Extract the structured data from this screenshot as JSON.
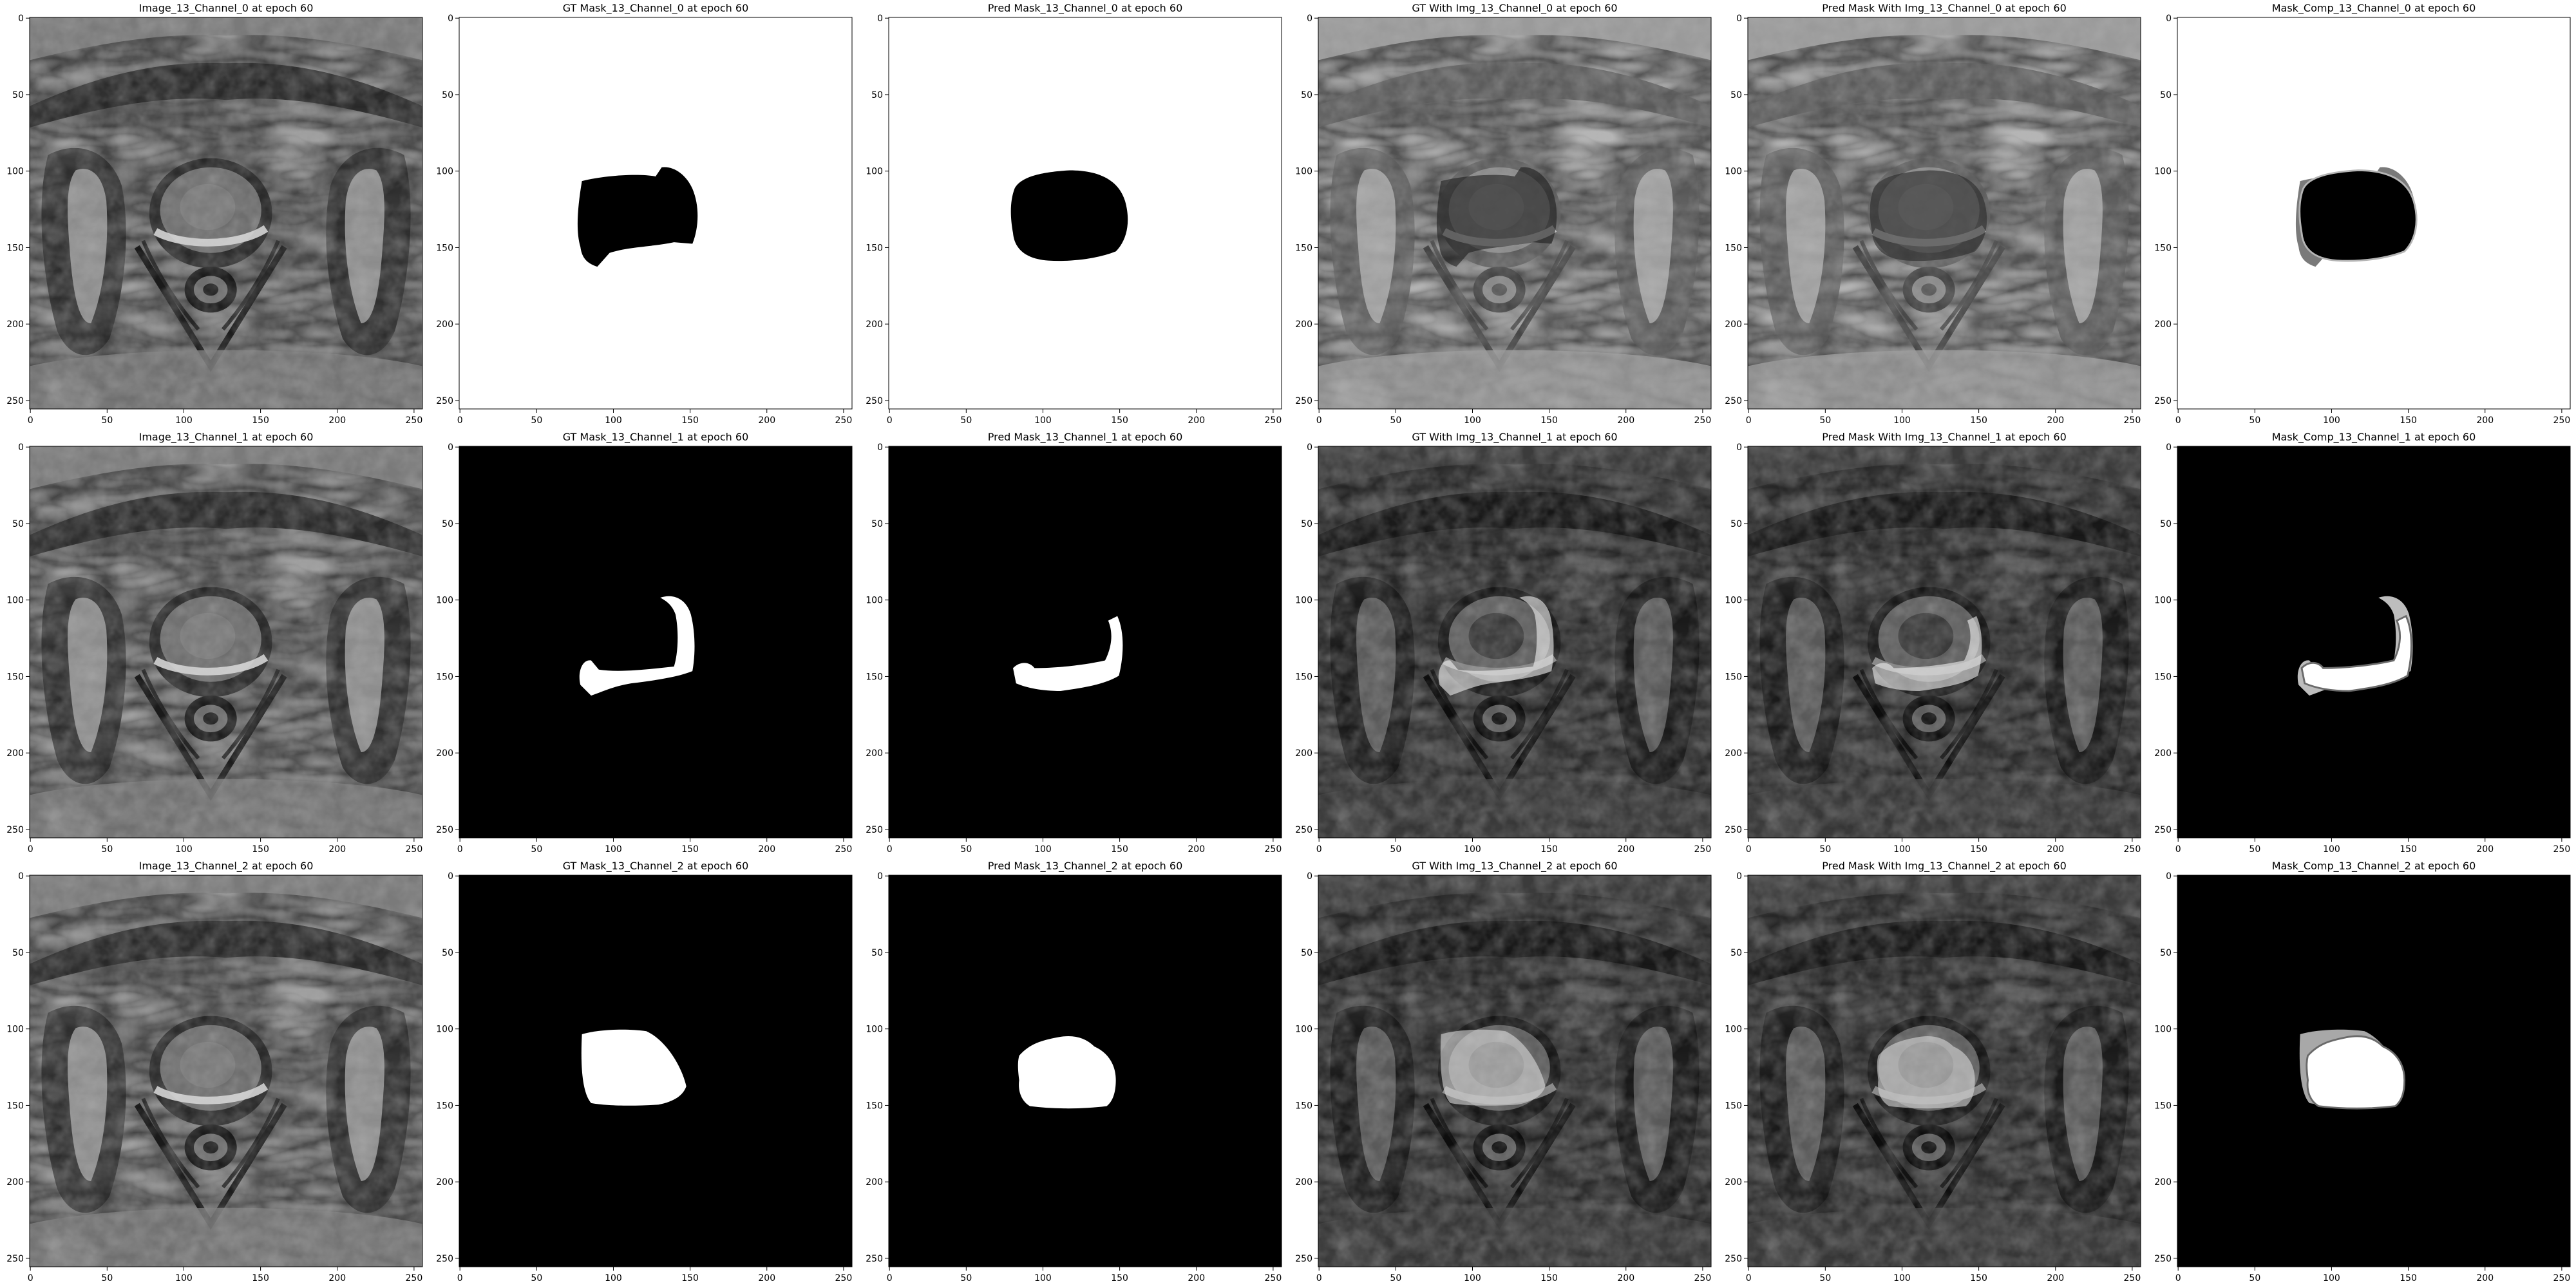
{
  "figure": {
    "axis_ticks": {
      "x": [
        "0",
        "50",
        "100",
        "150",
        "200",
        "250"
      ],
      "y": [
        "0",
        "50",
        "100",
        "150",
        "200",
        "250"
      ]
    },
    "rows": [
      {
        "channel": "Channel_0",
        "panels": [
          {
            "title": "Image_13_Channel_0 at epoch 60",
            "kind": "image",
            "variant": "bright"
          },
          {
            "title": "GT Mask_13_Channel_0 at epoch 60",
            "kind": "mask",
            "bg": "#ffffff",
            "fg": "#000000",
            "shape": "gt0"
          },
          {
            "title": "Pred Mask_13_Channel_0 at epoch 60",
            "kind": "mask",
            "bg": "#ffffff",
            "fg": "#000000",
            "shape": "pred0"
          },
          {
            "title": "GT With Img_13_Channel_0 at epoch 60",
            "kind": "overlay",
            "variant": "pale",
            "shape": "gt0",
            "overlay_color": "#1c1c1c"
          },
          {
            "title": "Pred Mask With Img_13_Channel_0 at epoch 60",
            "kind": "overlay",
            "variant": "pale",
            "shape": "pred0",
            "overlay_color": "#2a2a2a"
          },
          {
            "title": "Mask_Comp_13_Channel_0 at epoch 60",
            "kind": "comp",
            "bg": "#ffffff",
            "a": "gt0",
            "b": "pred0",
            "a_color": "#7a7a7a",
            "b_color": "#000000",
            "extra_color": "#b5b5b5"
          }
        ]
      },
      {
        "channel": "Channel_1",
        "panels": [
          {
            "title": "Image_13_Channel_1 at epoch 60",
            "kind": "image",
            "variant": "bright"
          },
          {
            "title": "GT Mask_13_Channel_1 at epoch 60",
            "kind": "mask",
            "bg": "#000000",
            "fg": "#ffffff",
            "shape": "gt1"
          },
          {
            "title": "Pred Mask_13_Channel_1 at epoch 60",
            "kind": "mask",
            "bg": "#000000",
            "fg": "#ffffff",
            "shape": "pred1"
          },
          {
            "title": "GT With Img_13_Channel_1 at epoch 60",
            "kind": "overlay",
            "variant": "dark",
            "shape": "gt1",
            "overlay_color": "#f2f2f2"
          },
          {
            "title": "Pred Mask With Img_13_Channel_1 at epoch 60",
            "kind": "overlay",
            "variant": "dark",
            "shape": "pred1",
            "overlay_color": "#f2f2f2"
          },
          {
            "title": "Mask_Comp_13_Channel_1 at epoch 60",
            "kind": "comp",
            "bg": "#000000",
            "a": "gt1",
            "b": "pred1",
            "a_color": "#bdbdbd",
            "b_color": "#ffffff",
            "extra_color": "#6a6a6a"
          }
        ]
      },
      {
        "channel": "Channel_2",
        "panels": [
          {
            "title": "Image_13_Channel_2 at epoch 60",
            "kind": "image",
            "variant": "bright"
          },
          {
            "title": "GT Mask_13_Channel_2 at epoch 60",
            "kind": "mask",
            "bg": "#000000",
            "fg": "#ffffff",
            "shape": "gt2"
          },
          {
            "title": "Pred Mask_13_Channel_2 at epoch 60",
            "kind": "mask",
            "bg": "#000000",
            "fg": "#ffffff",
            "shape": "pred2"
          },
          {
            "title": "GT With Img_13_Channel_2 at epoch 60",
            "kind": "overlay",
            "variant": "dark",
            "shape": "gt2",
            "overlay_color": "#dcdcdc"
          },
          {
            "title": "Pred Mask With Img_13_Channel_2 at epoch 60",
            "kind": "overlay",
            "variant": "dark",
            "shape": "pred2",
            "overlay_color": "#d8d8d8"
          },
          {
            "title": "Mask_Comp_13_Channel_2 at epoch 60",
            "kind": "comp",
            "bg": "#000000",
            "a": "gt2",
            "b": "pred2",
            "a_color": "#a8a8a8",
            "b_color": "#ffffff",
            "extra_color": "#6a6a6a"
          }
        ]
      }
    ]
  }
}
